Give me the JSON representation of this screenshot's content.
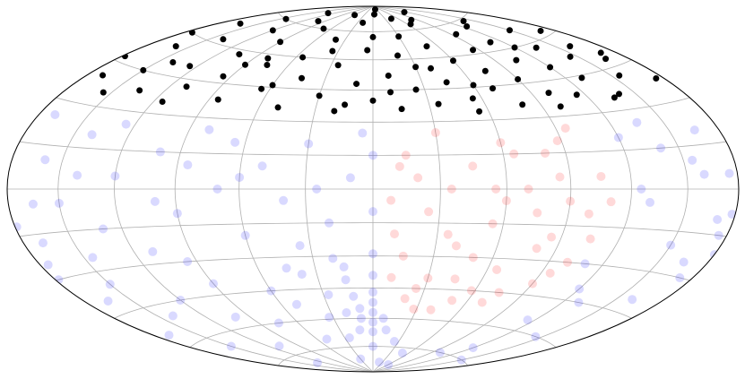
{
  "chart_data": {
    "type": "scatter",
    "projection": "hammer",
    "grid": true,
    "xlim": [
      -180,
      180
    ],
    "ylim": [
      -90,
      90
    ],
    "xticks": [
      -150,
      -120,
      -90,
      -60,
      -30,
      0,
      30,
      60,
      90,
      120,
      150
    ],
    "yticks": [
      -75,
      -60,
      -45,
      -30,
      -15,
      0,
      15,
      30,
      45,
      60,
      75
    ],
    "series": [
      {
        "color": "#0000ff",
        "opacity": 0.15,
        "x": [
          0,
          0,
          -9,
          -9,
          0,
          8,
          0,
          -12,
          -19,
          -12,
          0,
          12,
          0,
          -15,
          -27,
          -33,
          -25,
          0,
          25,
          0,
          -20,
          -38,
          -50,
          -50,
          -30,
          20,
          50,
          -170,
          -160,
          -150,
          -140,
          -130,
          -120,
          -110,
          -100,
          -90,
          -80,
          -70,
          -60,
          -50,
          -40,
          -30,
          -20,
          -10,
          0,
          -5,
          0,
          120,
          130,
          140,
          150,
          160,
          170,
          180,
          175,
          -175,
          -178,
          165,
          172,
          -168,
          178,
          -179,
          -165,
          -150,
          -140,
          -120,
          -100,
          -90,
          -75,
          -60,
          -110,
          -150,
          -170,
          130,
          145,
          160,
          120,
          100,
          115,
          150,
          -130,
          60,
          -165,
          -145,
          -125,
          -95,
          -85,
          -65,
          -45,
          -35,
          -15,
          -25,
          125,
          135,
          155,
          165,
          110,
          120,
          -60,
          -100,
          -140,
          175
        ],
        "values": [
          -57,
          -52,
          -55,
          -60,
          -62,
          -60,
          -47,
          -49,
          -57,
          -66,
          -67,
          -66,
          -39,
          -41,
          -48,
          -59,
          -70,
          -75,
          -72,
          -29,
          -31,
          -38,
          -52,
          -70,
          -82,
          -84,
          -78,
          25,
          10,
          -5,
          20,
          -15,
          5,
          -25,
          15,
          -10,
          25,
          0,
          -20,
          10,
          -5,
          20,
          -15,
          5,
          -10,
          25,
          15,
          20,
          -5,
          15,
          -20,
          5,
          -10,
          -21,
          -15,
          -25,
          -30,
          -25,
          -30,
          -18,
          -8,
          -12,
          -40,
          -35,
          -50,
          -45,
          -55,
          -40,
          -60,
          -45,
          -70,
          -65,
          -55,
          -45,
          -60,
          -40,
          -70,
          -75,
          -55,
          -75,
          -80,
          -85,
          -5,
          -25,
          25,
          -30,
          10,
          20,
          -35,
          -25,
          -35,
          0,
          0,
          25,
          10,
          20,
          -30,
          -40,
          5,
          -5,
          5,
          5
        ]
      },
      {
        "color": "#ff0000",
        "opacity": 0.15,
        "x": [
          10,
          15,
          20,
          25,
          30,
          35,
          40,
          45,
          50,
          55,
          60,
          65,
          70,
          75,
          80,
          85,
          90,
          95,
          100,
          105,
          10,
          20,
          30,
          40,
          50,
          60,
          70,
          80,
          90,
          100,
          15,
          25,
          35,
          45,
          55,
          65,
          75,
          85,
          95,
          105,
          8,
          12,
          28,
          58,
          88,
          110
        ],
        "values": [
          -40,
          -30,
          -50,
          -10,
          -40,
          0,
          -25,
          10,
          -50,
          -15,
          20,
          -35,
          0,
          -45,
          15,
          -20,
          -5,
          25,
          -30,
          5,
          -20,
          5,
          25,
          -55,
          -30,
          -5,
          -50,
          -25,
          -40,
          -10,
          15,
          -45,
          -20,
          -40,
          0,
          15,
          -10,
          5,
          -35,
          -20,
          -5,
          10,
          -55,
          -45,
          20,
          -5
        ]
      },
      {
        "color": "#000000",
        "opacity": 1,
        "x": [
          -170,
          -160,
          -150,
          -140,
          -135,
          -125,
          -120,
          -110,
          -105,
          -95,
          -90,
          -85,
          -75,
          -70,
          -65,
          -55,
          -50,
          -45,
          -40,
          -30,
          -25,
          -20,
          -15,
          -10,
          -5,
          0,
          5,
          10,
          15,
          20,
          25,
          30,
          35,
          40,
          45,
          50,
          55,
          60,
          65,
          70,
          75,
          80,
          85,
          90,
          95,
          100,
          105,
          110,
          115,
          120,
          125,
          130,
          135,
          140,
          145,
          150,
          155,
          160,
          165,
          175,
          -175,
          -165,
          -145,
          -130,
          -100,
          -60,
          -35,
          0,
          20,
          45,
          80,
          115,
          140,
          170,
          -155,
          -115,
          -80,
          -20,
          55,
          100,
          135,
          170,
          -178,
          -60,
          10,
          60,
          120,
          -90,
          30,
          -140
        ],
        "values": [
          40,
          55,
          45,
          62,
          38,
          50,
          70,
          42,
          58,
          48,
          66,
          38,
          55,
          75,
          44,
          60,
          36,
          50,
          70,
          42,
          57,
          80,
          38,
          48,
          65,
          40,
          85,
          52,
          36,
          62,
          45,
          72,
          38,
          55,
          48,
          66,
          40,
          58,
          78,
          44,
          52,
          36,
          62,
          47,
          70,
          40,
          55,
          64,
          38,
          50,
          72,
          44,
          58,
          36,
          52,
          66,
          42,
          55,
          48,
          38,
          60,
          68,
          75,
          82,
          78,
          84,
          64,
          72,
          88,
          82,
          80,
          84,
          74,
          62,
          35,
          35,
          58,
          35,
          34,
          34,
          35,
          50,
          47,
          46,
          44,
          46,
          60,
          54,
          56,
          50
        ]
      }
    ]
  }
}
